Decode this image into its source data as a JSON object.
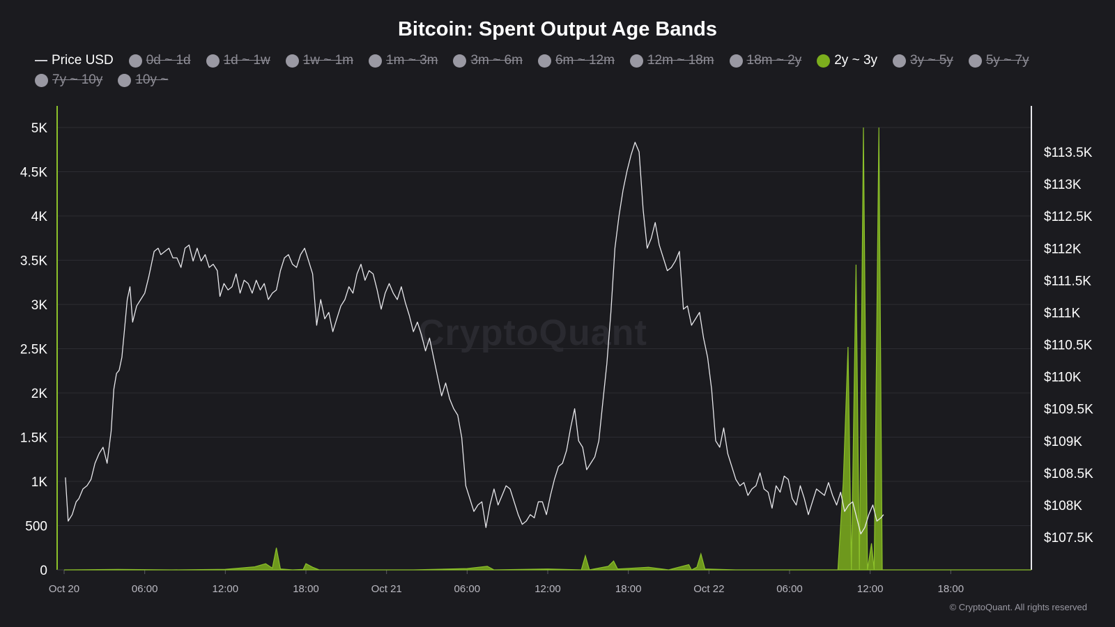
{
  "title": "Bitcoin: Spent Output Age Bands",
  "watermark": "CryptoQuant",
  "copyright": "© CryptoQuant. All rights reserved",
  "legend": [
    {
      "label": "Price USD",
      "kind": "line",
      "state": "active"
    },
    {
      "label": "0d ~ 1d",
      "kind": "dot",
      "state": "hidden"
    },
    {
      "label": "1d ~ 1w",
      "kind": "dot",
      "state": "hidden"
    },
    {
      "label": "1w ~ 1m",
      "kind": "dot",
      "state": "hidden"
    },
    {
      "label": "1m ~ 3m",
      "kind": "dot",
      "state": "hidden"
    },
    {
      "label": "3m ~ 6m",
      "kind": "dot",
      "state": "hidden"
    },
    {
      "label": "6m ~ 12m",
      "kind": "dot",
      "state": "hidden"
    },
    {
      "label": "12m ~ 18m",
      "kind": "dot",
      "state": "hidden"
    },
    {
      "label": "18m ~ 2y",
      "kind": "dot",
      "state": "hidden"
    },
    {
      "label": "2y ~ 3y",
      "kind": "dot",
      "state": "active",
      "color": "#7cae1d"
    },
    {
      "label": "3y ~ 5y",
      "kind": "dot",
      "state": "hidden"
    },
    {
      "label": "5y ~ 7y",
      "kind": "dot",
      "state": "hidden"
    },
    {
      "label": "7y ~ 10y",
      "kind": "dot",
      "state": "hidden"
    },
    {
      "label": "10y ~",
      "kind": "dot",
      "state": "hidden"
    }
  ],
  "colors": {
    "background": "#1b1b1f",
    "grid": "#2c2c32",
    "price_line": "#e8e8ec",
    "band_fill": "#7cae1d",
    "band_line": "#8cc12a",
    "axis_text": "#ffffff",
    "xaxis_text": "#b9b8c0"
  },
  "chart_data": {
    "type": "area",
    "x_unit": "hours since Oct 20 00:00",
    "x_range": [
      0,
      72
    ],
    "x_ticks": [
      {
        "x": 0,
        "label": "Oct 20"
      },
      {
        "x": 6,
        "label": "06:00"
      },
      {
        "x": 12,
        "label": "12:00"
      },
      {
        "x": 18,
        "label": "18:00"
      },
      {
        "x": 24,
        "label": "Oct 21"
      },
      {
        "x": 30,
        "label": "06:00"
      },
      {
        "x": 36,
        "label": "12:00"
      },
      {
        "x": 42,
        "label": "18:00"
      },
      {
        "x": 48,
        "label": "Oct 22"
      },
      {
        "x": 54,
        "label": "06:00"
      },
      {
        "x": 60,
        "label": "12:00"
      },
      {
        "x": 66,
        "label": "18:00"
      }
    ],
    "y_left": {
      "min": 0,
      "max": 5000,
      "ticks": [
        0,
        500,
        1000,
        1500,
        2000,
        2500,
        3000,
        3500,
        4000,
        4500,
        5000
      ],
      "tick_labels": [
        "0",
        "500",
        "1K",
        "1.5K",
        "2K",
        "2.5K",
        "3K",
        "3.5K",
        "4K",
        "4.5K",
        "5K"
      ]
    },
    "y_right": {
      "min": 106990,
      "max": 113880,
      "ticks": [
        107500,
        108000,
        108500,
        109000,
        109500,
        110000,
        110500,
        111000,
        111500,
        112000,
        112500,
        113000,
        113500
      ],
      "tick_labels": [
        "$107.5K",
        "$108K",
        "$108.5K",
        "$109K",
        "$109.5K",
        "$110K",
        "$110.5K",
        "$111K",
        "$111.5K",
        "$112K",
        "$112.5K",
        "$113K",
        "$113.5K"
      ]
    },
    "grid": true,
    "legend_position": "top",
    "series": [
      {
        "name": "2y ~ 3y",
        "axis": "left",
        "style": "area",
        "points": [
          [
            0,
            0
          ],
          [
            4,
            5
          ],
          [
            8,
            0
          ],
          [
            12,
            6
          ],
          [
            14.2,
            35
          ],
          [
            15,
            70
          ],
          [
            15.5,
            20
          ],
          [
            15.8,
            250
          ],
          [
            16.1,
            10
          ],
          [
            17,
            0
          ],
          [
            17.8,
            5
          ],
          [
            18,
            70
          ],
          [
            18.5,
            30
          ],
          [
            19,
            0
          ],
          [
            22,
            0
          ],
          [
            26,
            0
          ],
          [
            30,
            15
          ],
          [
            31.5,
            40
          ],
          [
            32,
            0
          ],
          [
            36,
            10
          ],
          [
            38.5,
            0
          ],
          [
            38.8,
            160
          ],
          [
            39.1,
            0
          ],
          [
            40.5,
            40
          ],
          [
            40.9,
            100
          ],
          [
            41.2,
            10
          ],
          [
            43.5,
            30
          ],
          [
            45,
            0
          ],
          [
            46.5,
            60
          ],
          [
            46.7,
            0
          ],
          [
            47.1,
            30
          ],
          [
            47.4,
            180
          ],
          [
            47.7,
            10
          ],
          [
            50,
            0
          ],
          [
            56,
            0
          ],
          [
            57.6,
            0
          ],
          [
            58.0,
            1000
          ],
          [
            58.35,
            2520
          ],
          [
            58.6,
            0
          ],
          [
            58.95,
            3450
          ],
          [
            59.2,
            0
          ],
          [
            59.5,
            5000
          ],
          [
            59.8,
            0
          ],
          [
            60.1,
            300
          ],
          [
            60.3,
            0
          ],
          [
            60.65,
            5000
          ],
          [
            60.9,
            0
          ],
          [
            61.2,
            0
          ],
          [
            72,
            0
          ]
        ]
      },
      {
        "name": "Price USD",
        "axis": "right",
        "style": "line",
        "points": [
          [
            0.1,
            108430
          ],
          [
            0.3,
            107750
          ],
          [
            0.6,
            107850
          ],
          [
            0.9,
            108050
          ],
          [
            1.1,
            108100
          ],
          [
            1.4,
            108250
          ],
          [
            1.7,
            108300
          ],
          [
            2.0,
            108400
          ],
          [
            2.3,
            108650
          ],
          [
            2.6,
            108800
          ],
          [
            2.9,
            108900
          ],
          [
            3.2,
            108650
          ],
          [
            3.5,
            109150
          ],
          [
            3.7,
            109800
          ],
          [
            3.9,
            110050
          ],
          [
            4.1,
            110100
          ],
          [
            4.3,
            110300
          ],
          [
            4.5,
            110750
          ],
          [
            4.7,
            111200
          ],
          [
            4.9,
            111400
          ],
          [
            5.1,
            110850
          ],
          [
            5.4,
            111100
          ],
          [
            5.7,
            111200
          ],
          [
            6.0,
            111300
          ],
          [
            6.3,
            111550
          ],
          [
            6.5,
            111750
          ],
          [
            6.7,
            111950
          ],
          [
            7.0,
            112000
          ],
          [
            7.2,
            111900
          ],
          [
            7.5,
            111950
          ],
          [
            7.8,
            112000
          ],
          [
            8.1,
            111850
          ],
          [
            8.4,
            111850
          ],
          [
            8.7,
            111700
          ],
          [
            9.0,
            112000
          ],
          [
            9.3,
            112050
          ],
          [
            9.6,
            111800
          ],
          [
            9.9,
            112000
          ],
          [
            10.2,
            111800
          ],
          [
            10.5,
            111900
          ],
          [
            10.8,
            111700
          ],
          [
            11.1,
            111750
          ],
          [
            11.4,
            111650
          ],
          [
            11.6,
            111250
          ],
          [
            11.9,
            111450
          ],
          [
            12.2,
            111350
          ],
          [
            12.5,
            111400
          ],
          [
            12.8,
            111600
          ],
          [
            13.1,
            111300
          ],
          [
            13.4,
            111500
          ],
          [
            13.7,
            111450
          ],
          [
            14.0,
            111300
          ],
          [
            14.3,
            111500
          ],
          [
            14.6,
            111350
          ],
          [
            14.9,
            111450
          ],
          [
            15.2,
            111200
          ],
          [
            15.5,
            111300
          ],
          [
            15.8,
            111350
          ],
          [
            16.1,
            111650
          ],
          [
            16.4,
            111850
          ],
          [
            16.7,
            111900
          ],
          [
            17.0,
            111750
          ],
          [
            17.3,
            111700
          ],
          [
            17.6,
            111900
          ],
          [
            17.9,
            112000
          ],
          [
            18.2,
            111800
          ],
          [
            18.5,
            111600
          ],
          [
            18.8,
            110800
          ],
          [
            19.1,
            111200
          ],
          [
            19.4,
            110900
          ],
          [
            19.7,
            111000
          ],
          [
            20.0,
            110700
          ],
          [
            20.3,
            110900
          ],
          [
            20.6,
            111100
          ],
          [
            20.9,
            111200
          ],
          [
            21.2,
            111400
          ],
          [
            21.5,
            111300
          ],
          [
            21.8,
            111600
          ],
          [
            22.1,
            111750
          ],
          [
            22.4,
            111500
          ],
          [
            22.7,
            111650
          ],
          [
            23.0,
            111600
          ],
          [
            23.3,
            111350
          ],
          [
            23.6,
            111050
          ],
          [
            23.9,
            111300
          ],
          [
            24.2,
            111450
          ],
          [
            24.5,
            111300
          ],
          [
            24.8,
            111200
          ],
          [
            25.1,
            111400
          ],
          [
            25.4,
            111150
          ],
          [
            25.7,
            110950
          ],
          [
            26.0,
            110700
          ],
          [
            26.3,
            110850
          ],
          [
            26.6,
            110650
          ],
          [
            26.9,
            110400
          ],
          [
            27.2,
            110600
          ],
          [
            27.5,
            110300
          ],
          [
            27.8,
            110000
          ],
          [
            28.1,
            109700
          ],
          [
            28.4,
            109900
          ],
          [
            28.7,
            109650
          ],
          [
            29.0,
            109500
          ],
          [
            29.3,
            109400
          ],
          [
            29.6,
            109050
          ],
          [
            29.9,
            108300
          ],
          [
            30.2,
            108100
          ],
          [
            30.5,
            107900
          ],
          [
            30.8,
            108000
          ],
          [
            31.1,
            108050
          ],
          [
            31.4,
            107650
          ],
          [
            31.7,
            108000
          ],
          [
            32.0,
            108250
          ],
          [
            32.3,
            108000
          ],
          [
            32.6,
            108150
          ],
          [
            32.9,
            108300
          ],
          [
            33.2,
            108250
          ],
          [
            33.5,
            108050
          ],
          [
            33.8,
            107850
          ],
          [
            34.1,
            107700
          ],
          [
            34.4,
            107750
          ],
          [
            34.7,
            107850
          ],
          [
            35.0,
            107800
          ],
          [
            35.3,
            108050
          ],
          [
            35.6,
            108050
          ],
          [
            35.9,
            107850
          ],
          [
            36.2,
            108150
          ],
          [
            36.5,
            108400
          ],
          [
            36.8,
            108600
          ],
          [
            37.1,
            108650
          ],
          [
            37.4,
            108850
          ],
          [
            37.7,
            109200
          ],
          [
            38.0,
            109500
          ],
          [
            38.3,
            109000
          ],
          [
            38.6,
            108900
          ],
          [
            38.9,
            108550
          ],
          [
            39.2,
            108650
          ],
          [
            39.5,
            108750
          ],
          [
            39.8,
            109000
          ],
          [
            40.1,
            109600
          ],
          [
            40.4,
            110200
          ],
          [
            40.7,
            111000
          ],
          [
            41.0,
            112000
          ],
          [
            41.3,
            112500
          ],
          [
            41.6,
            112900
          ],
          [
            41.9,
            113200
          ],
          [
            42.2,
            113450
          ],
          [
            42.5,
            113650
          ],
          [
            42.8,
            113500
          ],
          [
            43.1,
            112600
          ],
          [
            43.4,
            112000
          ],
          [
            43.7,
            112150
          ],
          [
            44.0,
            112400
          ],
          [
            44.3,
            112050
          ],
          [
            44.6,
            111850
          ],
          [
            44.9,
            111650
          ],
          [
            45.2,
            111700
          ],
          [
            45.5,
            111800
          ],
          [
            45.8,
            111950
          ],
          [
            46.1,
            111050
          ],
          [
            46.4,
            111100
          ],
          [
            46.7,
            110800
          ],
          [
            47.0,
            110900
          ],
          [
            47.3,
            111000
          ],
          [
            47.6,
            110600
          ],
          [
            47.9,
            110300
          ],
          [
            48.2,
            109800
          ],
          [
            48.5,
            109000
          ],
          [
            48.8,
            108900
          ],
          [
            49.1,
            109200
          ],
          [
            49.4,
            108800
          ],
          [
            49.7,
            108600
          ],
          [
            50.0,
            108400
          ],
          [
            50.3,
            108300
          ],
          [
            50.6,
            108350
          ],
          [
            50.9,
            108150
          ],
          [
            51.2,
            108250
          ],
          [
            51.5,
            108300
          ],
          [
            51.8,
            108500
          ],
          [
            52.1,
            108250
          ],
          [
            52.4,
            108200
          ],
          [
            52.7,
            107950
          ],
          [
            53.0,
            108300
          ],
          [
            53.3,
            108200
          ],
          [
            53.6,
            108450
          ],
          [
            53.9,
            108400
          ],
          [
            54.2,
            108100
          ],
          [
            54.5,
            108000
          ],
          [
            54.8,
            108300
          ],
          [
            55.1,
            108100
          ],
          [
            55.4,
            107850
          ],
          [
            55.7,
            108050
          ],
          [
            56.0,
            108250
          ],
          [
            56.3,
            108200
          ],
          [
            56.6,
            108150
          ],
          [
            56.9,
            108350
          ],
          [
            57.2,
            108150
          ],
          [
            57.5,
            108000
          ],
          [
            57.8,
            108200
          ],
          [
            58.1,
            107900
          ],
          [
            58.4,
            108000
          ],
          [
            58.7,
            108050
          ],
          [
            59.0,
            107800
          ],
          [
            59.3,
            107550
          ],
          [
            59.6,
            107650
          ],
          [
            59.9,
            107850
          ],
          [
            60.2,
            108000
          ],
          [
            60.5,
            107750
          ],
          [
            60.8,
            107800
          ],
          [
            61.0,
            107850
          ]
        ]
      }
    ]
  }
}
